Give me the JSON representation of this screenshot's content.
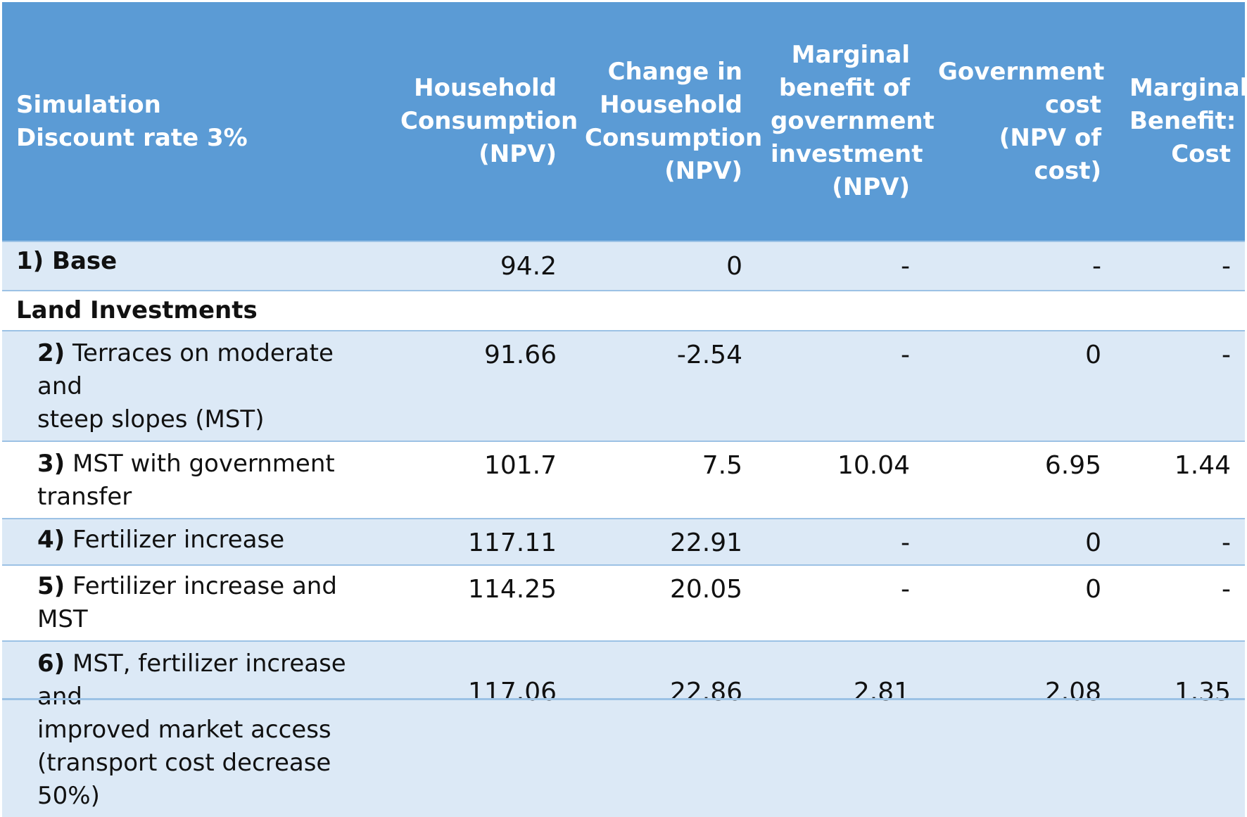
{
  "table": {
    "header": {
      "simulation": "Simulation\nDiscount rate 3%",
      "household_consumption": "Household\nConsumption\n(NPV)",
      "change_in_consumption": "Change in\nHousehold\nConsumption\n(NPV)",
      "marginal_benefit": "Marginal\nbenefit of\ngovernment\ninvestment\n(NPV)",
      "government_cost": "Government\ncost\n(NPV of cost)",
      "benefit_cost_ratio": "Marginal\nBenefit:\nCost"
    },
    "rows": [
      {
        "number": "1) Base",
        "label": "",
        "values": [
          "94.2",
          "0",
          "-",
          "-",
          "-"
        ]
      },
      {
        "section": "Land Investments"
      },
      {
        "number": "2)",
        "label": " Terraces on moderate and\nsteep slopes (MST)",
        "values": [
          "91.66",
          "-2.54",
          "-",
          "0",
          "-"
        ]
      },
      {
        "number": "3)",
        "label": " MST with government\ntransfer",
        "values": [
          "101.7",
          "7.5",
          "10.04",
          "6.95",
          "1.44"
        ]
      },
      {
        "number": "4)",
        "label": " Fertilizer increase",
        "values": [
          "117.11",
          "22.91",
          "-",
          "0",
          "-"
        ]
      },
      {
        "number": "5)",
        "label": " Fertilizer increase and MST",
        "values": [
          "114.25",
          "20.05",
          "-",
          "0",
          "-"
        ]
      },
      {
        "number": "6)",
        "label": " MST, fertilizer increase and\nimproved market access\n(transport cost decrease 50%)",
        "values": [
          "117.06",
          "22.86",
          "2.81",
          "2.08",
          "1.35"
        ]
      }
    ]
  },
  "colors": {
    "header_bg": "#5b9bd5",
    "shaded_row_bg": "#dce9f6",
    "border": "#9cc2e5",
    "header_text": "#ffffff"
  }
}
